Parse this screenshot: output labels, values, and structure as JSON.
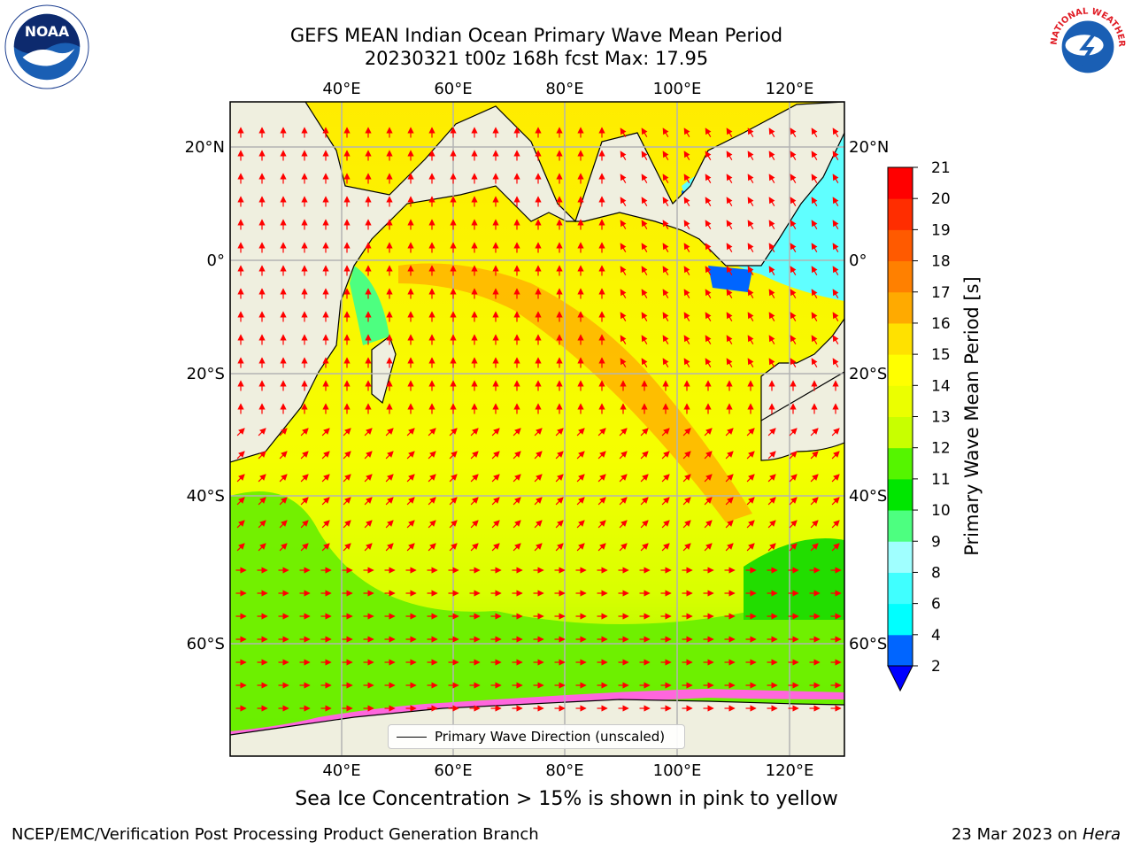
{
  "title": {
    "line1": "GEFS MEAN Indian Ocean Primary Wave Mean Period",
    "line2": "20230321 t00z 168h fcst   Max: 17.95"
  },
  "map": {
    "lon_range": [
      20,
      130
    ],
    "lat_range": [
      -70,
      27
    ],
    "lon_ticks": [
      "40°E",
      "60°E",
      "80°E",
      "100°E",
      "120°E"
    ],
    "lat_ticks": [
      "20°N",
      "0°",
      "20°S",
      "40°S",
      "60°S"
    ],
    "grid": true,
    "land_color": "#efefdf",
    "arrow_color": "#ff0000"
  },
  "legend": {
    "label": "Primary Wave Direction (unscaled)",
    "placement": "bottom-center"
  },
  "colorbar": {
    "title": "Primary Wave Mean Period [s]",
    "ticks": [
      "2",
      "4",
      "6",
      "8",
      "9",
      "10",
      "11",
      "12",
      "13",
      "14",
      "15",
      "16",
      "17",
      "18",
      "19",
      "20",
      "21"
    ],
    "colors": [
      "#0065ff",
      "#00ffff",
      "#40ffff",
      "#a0ffff",
      "#4dff80",
      "#00e600",
      "#55f500",
      "#c8ff00",
      "#ebff00",
      "#ffff00",
      "#ffe100",
      "#ffaa00",
      "#ff8000",
      "#ff5a00",
      "#ff2d00",
      "#ff0000"
    ],
    "under_color": "#0000ff"
  },
  "subtitle": "Sea Ice Concentration > 15% is shown in pink to yellow",
  "footer": {
    "left": "NCEP/EMC/Verification Post Processing Product Generation Branch",
    "right_prefix": "23 Mar 2023 on ",
    "right_machine": "Hera"
  },
  "logos": {
    "noaa_text": "NOAA",
    "nws_text": "NATIONAL WEATHER SERVICE"
  }
}
